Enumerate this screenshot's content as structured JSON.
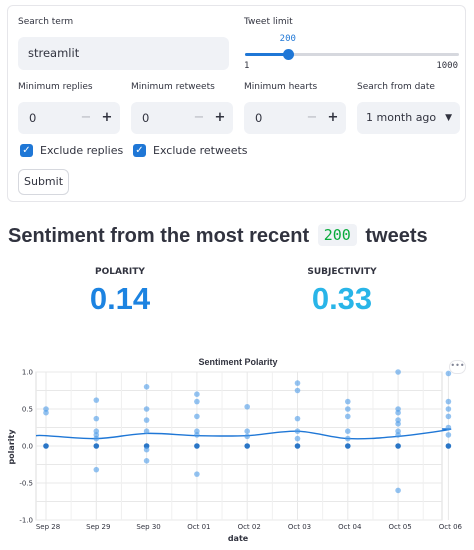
{
  "form": {
    "search_term": {
      "label": "Search term",
      "value": "streamlit"
    },
    "tweet_limit": {
      "label": "Tweet limit",
      "value": "200",
      "min": "1",
      "max": "1000",
      "fraction": 0.2
    },
    "min_replies": {
      "label": "Minimum replies",
      "value": "0"
    },
    "min_retweets": {
      "label": "Minimum retweets",
      "value": "0"
    },
    "min_hearts": {
      "label": "Minimum hearts",
      "value": "0"
    },
    "search_from": {
      "label": "Search from date",
      "value": "1 month ago"
    },
    "exclude_replies": {
      "label": "Exclude replies",
      "checked": true
    },
    "exclude_retweets": {
      "label": "Exclude retweets",
      "checked": true
    },
    "submit_label": "Submit",
    "minus_symbol": "−",
    "plus_symbol": "+"
  },
  "heading": {
    "prefix": "Sentiment from the most recent",
    "count": "200",
    "suffix": "tweets"
  },
  "metrics": {
    "polarity": {
      "label": "POLARITY",
      "value": "0.14",
      "color": "#1c83e1"
    },
    "subjectivity": {
      "label": "SUBJECTIVITY",
      "value": "0.33",
      "color": "#29b5e8"
    }
  },
  "colors": {
    "accent": "#1f77d6",
    "point": "#4c9be8",
    "code_green": "#09ab3b"
  },
  "icons": {
    "checkbox": "check-icon",
    "select": "chevron-down-icon",
    "menu": "more-horizontal-icon"
  },
  "chart_data": {
    "type": "scatter",
    "title": "Sentiment Polarity",
    "xlabel": "date",
    "ylabel": "polarity",
    "ylim": [
      -1.0,
      1.0
    ],
    "y_ticks": [
      "1.0",
      "0.5",
      "0.0",
      "-0.5",
      "-1.0"
    ],
    "x_ticks": [
      "Sep 28",
      "Sep 29",
      "Sep 30",
      "Oct 01",
      "Oct 02",
      "Oct 03",
      "Oct 04",
      "Oct 05",
      "Oct 06"
    ],
    "grid": true,
    "points": [
      {
        "x": "Sep 28",
        "y": 0.5
      },
      {
        "x": "Sep 28",
        "y": 0.45
      },
      {
        "x": "Sep 28",
        "y": 0.0
      },
      {
        "x": "Sep 29",
        "y": 0.62
      },
      {
        "x": "Sep 29",
        "y": 0.37
      },
      {
        "x": "Sep 29",
        "y": 0.2
      },
      {
        "x": "Sep 29",
        "y": 0.15
      },
      {
        "x": "Sep 29",
        "y": 0.1
      },
      {
        "x": "Sep 29",
        "y": 0.0
      },
      {
        "x": "Sep 29",
        "y": -0.32
      },
      {
        "x": "Sep 30",
        "y": 0.8
      },
      {
        "x": "Sep 30",
        "y": 0.5
      },
      {
        "x": "Sep 30",
        "y": 0.35
      },
      {
        "x": "Sep 30",
        "y": 0.2
      },
      {
        "x": "Sep 30",
        "y": 0.0
      },
      {
        "x": "Sep 30",
        "y": -0.05
      },
      {
        "x": "Sep 30",
        "y": -0.2
      },
      {
        "x": "Oct 01",
        "y": 0.7
      },
      {
        "x": "Oct 01",
        "y": 0.6
      },
      {
        "x": "Oct 01",
        "y": 0.4
      },
      {
        "x": "Oct 01",
        "y": 0.2
      },
      {
        "x": "Oct 01",
        "y": 0.15
      },
      {
        "x": "Oct 01",
        "y": 0.0
      },
      {
        "x": "Oct 01",
        "y": -0.38
      },
      {
        "x": "Oct 02",
        "y": 0.53
      },
      {
        "x": "Oct 02",
        "y": 0.2
      },
      {
        "x": "Oct 02",
        "y": 0.13
      },
      {
        "x": "Oct 02",
        "y": 0.0
      },
      {
        "x": "Oct 03",
        "y": 0.85
      },
      {
        "x": "Oct 03",
        "y": 0.75
      },
      {
        "x": "Oct 03",
        "y": 0.37
      },
      {
        "x": "Oct 03",
        "y": 0.2
      },
      {
        "x": "Oct 03",
        "y": 0.1
      },
      {
        "x": "Oct 03",
        "y": 0.0
      },
      {
        "x": "Oct 04",
        "y": 0.6
      },
      {
        "x": "Oct 04",
        "y": 0.5
      },
      {
        "x": "Oct 04",
        "y": 0.4
      },
      {
        "x": "Oct 04",
        "y": 0.2
      },
      {
        "x": "Oct 04",
        "y": 0.1
      },
      {
        "x": "Oct 04",
        "y": 0.0
      },
      {
        "x": "Oct 05",
        "y": 1.0
      },
      {
        "x": "Oct 05",
        "y": 0.5
      },
      {
        "x": "Oct 05",
        "y": 0.45
      },
      {
        "x": "Oct 05",
        "y": 0.35
      },
      {
        "x": "Oct 05",
        "y": 0.3
      },
      {
        "x": "Oct 05",
        "y": 0.2
      },
      {
        "x": "Oct 05",
        "y": 0.15
      },
      {
        "x": "Oct 05",
        "y": 0.0
      },
      {
        "x": "Oct 05",
        "y": -0.6
      },
      {
        "x": "Oct 06",
        "y": 0.98
      },
      {
        "x": "Oct 06",
        "y": 0.6
      },
      {
        "x": "Oct 06",
        "y": 0.5
      },
      {
        "x": "Oct 06",
        "y": 0.4
      },
      {
        "x": "Oct 06",
        "y": 0.25
      },
      {
        "x": "Oct 06",
        "y": 0.15
      },
      {
        "x": "Oct 06",
        "y": 0.0
      }
    ],
    "trend": [
      {
        "x": "Sep 28",
        "y": 0.14
      },
      {
        "x": "Sep 29",
        "y": 0.1
      },
      {
        "x": "Sep 30",
        "y": 0.17
      },
      {
        "x": "Oct 01",
        "y": 0.14
      },
      {
        "x": "Oct 02",
        "y": 0.14
      },
      {
        "x": "Oct 03",
        "y": 0.2
      },
      {
        "x": "Oct 04",
        "y": 0.1
      },
      {
        "x": "Oct 05",
        "y": 0.13
      },
      {
        "x": "Oct 06",
        "y": 0.22
      }
    ]
  }
}
